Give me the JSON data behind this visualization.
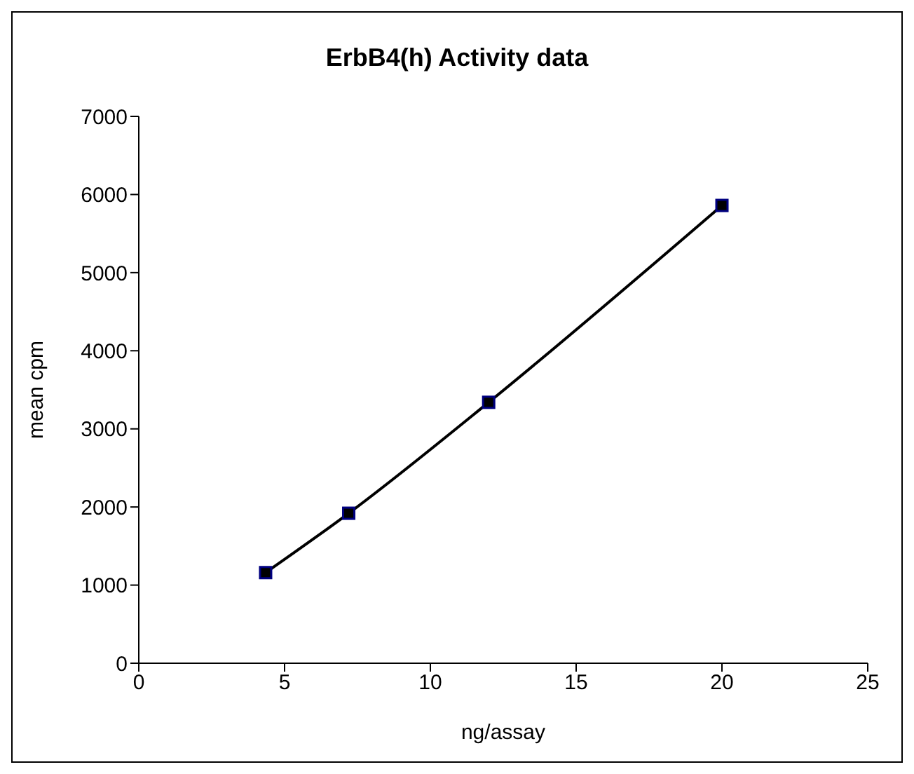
{
  "chart_data": {
    "type": "line",
    "title": "ErbB4(h) Activity data",
    "xlabel": "ng/assay",
    "ylabel": "mean cpm",
    "x": [
      4.35,
      7.2,
      12,
      20
    ],
    "series": [
      {
        "color": "#000000",
        "values": [
          1160,
          1920,
          3340,
          5860
        ]
      }
    ],
    "xlim": [
      0,
      25
    ],
    "xticks": [
      0,
      5,
      10,
      15,
      20,
      25
    ],
    "ylim": [
      0,
      7000
    ],
    "yticks": [
      0,
      1000,
      2000,
      3000,
      4000,
      5000,
      6000,
      7000
    ],
    "marker": "square",
    "line_style": "solid"
  }
}
